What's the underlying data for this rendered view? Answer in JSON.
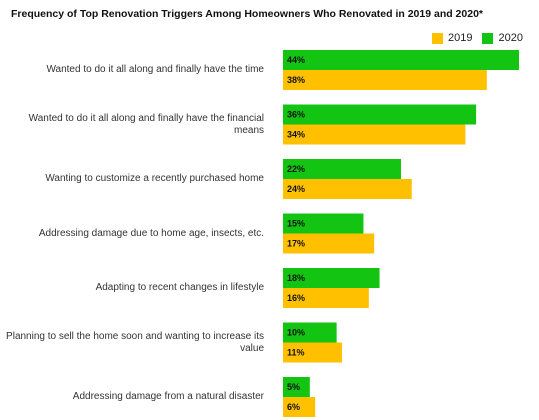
{
  "chart_data": {
    "type": "bar",
    "orientation": "horizontal",
    "title": "Frequency of Top Renovation Triggers Among Homeowners Who Renovated in 2019 and 2020*",
    "legend_position": "top-right",
    "categories": [
      "Wanted to do it all along and finally have the time",
      "Wanted to do it all along and finally have the financial means",
      "Wanting to customize a recently purchased home",
      "Addressing damage due to home age, insects, etc.",
      "Adapting to recent changes in lifestyle",
      "Planning to sell the home soon and wanting to increase its value",
      "Addressing damage from a natural disaster"
    ],
    "series": [
      {
        "name": "2020",
        "color": "#13c413",
        "values": [
          44,
          36,
          22,
          15,
          18,
          10,
          5
        ],
        "labels": [
          "44%",
          "36%",
          "22%",
          "15%",
          "18%",
          "10%",
          "5%"
        ]
      },
      {
        "name": "2019",
        "color": "#ffc000",
        "values": [
          38,
          34,
          24,
          17,
          16,
          11,
          6
        ],
        "labels": [
          "38%",
          "34%",
          "24%",
          "17%",
          "16%",
          "11%",
          "6%"
        ]
      }
    ],
    "legend_order": [
      "2019",
      "2020"
    ],
    "value_unit": "%",
    "xlim": [
      0,
      44
    ],
    "grid": false
  }
}
